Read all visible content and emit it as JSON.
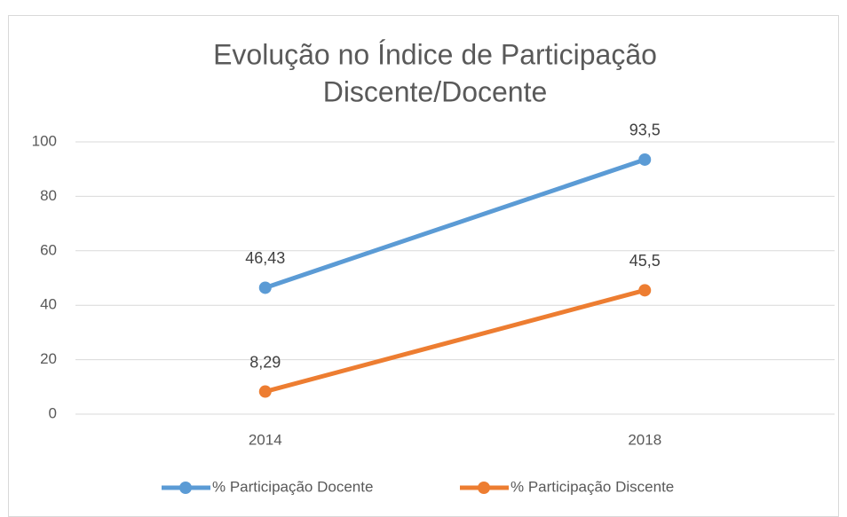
{
  "chart_data": {
    "type": "line",
    "title": [
      "Evolução no Índice de Participação",
      "Discente/Docente"
    ],
    "categories": [
      "2014",
      "2018"
    ],
    "series": [
      {
        "name": "% Participação Docente",
        "color": "#5b9bd5",
        "values": [
          46.43,
          93.5
        ],
        "value_labels": [
          "46,43",
          "93,5"
        ]
      },
      {
        "name": "% Participação Discente",
        "color": "#ed7d31",
        "values": [
          8.29,
          45.5
        ],
        "value_labels": [
          "8,29",
          "45,5"
        ]
      }
    ],
    "ylim": [
      0,
      100
    ],
    "yticks": [
      0,
      20,
      40,
      60,
      80,
      100
    ],
    "grid": true,
    "legend": "bottom"
  }
}
